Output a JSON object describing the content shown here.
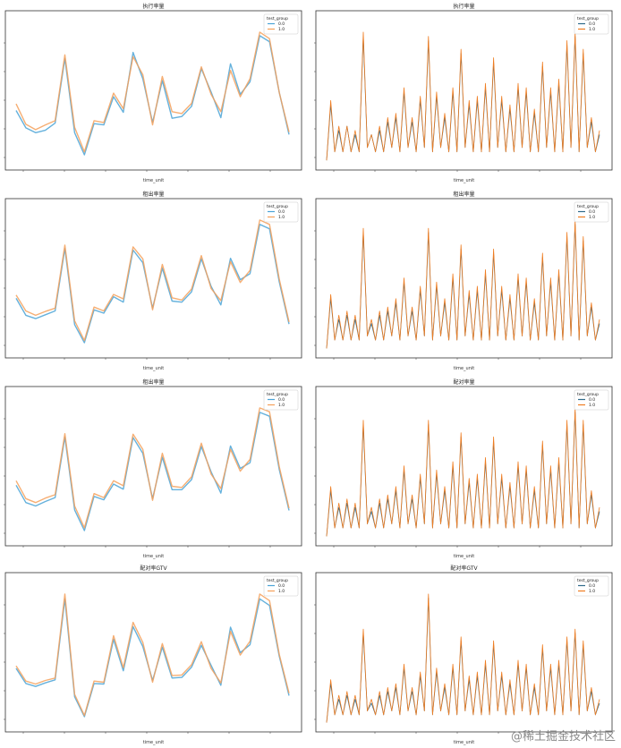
{
  "colors": {
    "series_0": "#4aa3d6",
    "series_1": "#f5a05a",
    "series_0_dark": "#2f6b8a",
    "series_1_dark": "#ef7d22",
    "axis": "#333333"
  },
  "footer": {
    "text": "@稀土掘金技术社区"
  },
  "chart_data": [
    {
      "type": "line",
      "title": "执行率量",
      "xlabel": "time_unit",
      "legend": {
        "title": "test_group",
        "placement": "top-right",
        "entries": [
          "0.0",
          "1.0"
        ]
      },
      "grid": false,
      "series": [
        {
          "name": "0.0",
          "values": [
            10.5,
            7.6,
            6.8,
            7.2,
            8.4,
            19.2,
            6.8,
            3.1,
            8.3,
            8.1,
            12.8,
            10.2,
            20.2,
            15.8,
            8.5,
            15.5,
            9.2,
            9.5,
            11.2,
            17.5,
            13.6,
            9.3,
            18.3,
            13.2,
            15.3,
            23.0,
            22.0,
            13.5,
            6.5
          ]
        },
        {
          "name": "1.0",
          "values": [
            11.6,
            8.2,
            7.3,
            8.1,
            8.8,
            19.8,
            7.7,
            3.6,
            8.8,
            8.5,
            13.4,
            10.8,
            19.5,
            16.5,
            8.1,
            16.2,
            10.3,
            10.0,
            11.7,
            17.8,
            13.2,
            10.3,
            17.2,
            12.8,
            15.8,
            23.6,
            22.5,
            13.5,
            6.9
          ]
        }
      ]
    },
    {
      "type": "line",
      "title": "执行率量",
      "xlabel": "time_unit",
      "legend": {
        "title": "test_group",
        "placement": "top-right",
        "entries": [
          "0.0",
          "1.0"
        ]
      },
      "grid": false,
      "series": [
        {
          "name": "0.0",
          "values": [
            1,
            14,
            3,
            8,
            3,
            9,
            3,
            7,
            3,
            30,
            4,
            7,
            3,
            8,
            3,
            10,
            4,
            11,
            3,
            17,
            4,
            10,
            3,
            15,
            4,
            29,
            3,
            16,
            4,
            11,
            3,
            17,
            3,
            26,
            4,
            14,
            3,
            15,
            3,
            18,
            3,
            24,
            4,
            15,
            3,
            13,
            3,
            18,
            4,
            17,
            3,
            12,
            3,
            23,
            4,
            17,
            3,
            19,
            3,
            28,
            4,
            30,
            3,
            26,
            4,
            10,
            3,
            7
          ]
        },
        {
          "name": "1.0",
          "values": [
            1,
            15,
            3,
            9,
            3,
            9,
            3,
            8,
            3,
            31,
            4,
            7,
            3,
            9,
            3,
            11,
            4,
            12,
            3,
            18,
            4,
            11,
            3,
            16,
            4,
            30,
            3,
            17,
            4,
            12,
            3,
            18,
            3,
            27,
            4,
            15,
            3,
            16,
            3,
            19,
            3,
            25,
            4,
            16,
            3,
            14,
            3,
            19,
            4,
            18,
            3,
            13,
            3,
            24,
            4,
            18,
            3,
            20,
            3,
            29,
            4,
            31,
            3,
            27,
            4,
            11,
            3,
            8
          ]
        }
      ]
    },
    {
      "type": "line",
      "title": "租出率量",
      "xlabel": "time_unit",
      "legend": {
        "title": "test_group",
        "placement": "top-right",
        "entries": [
          "0.0",
          "1.0"
        ]
      },
      "grid": false,
      "series": [
        {
          "name": "0.0",
          "values": [
            11.3,
            8.2,
            7.6,
            8.3,
            9.0,
            20.4,
            6.5,
            3.2,
            9.2,
            8.6,
            11.6,
            10.6,
            20.1,
            17.8,
            9.5,
            16.8,
            10.8,
            10.6,
            12.5,
            18.5,
            13.5,
            10.1,
            18.6,
            14.7,
            15.8,
            24.8,
            24.0,
            14.3,
            6.6
          ]
        },
        {
          "name": "1.0",
          "values": [
            11.9,
            9.0,
            8.2,
            8.9,
            9.5,
            21.0,
            7.2,
            3.6,
            9.7,
            9.0,
            12.0,
            11.2,
            20.7,
            18.5,
            9.2,
            17.5,
            11.4,
            11.0,
            13.0,
            19.1,
            13.1,
            10.9,
            18.0,
            14.2,
            16.4,
            25.6,
            24.8,
            14.8,
            7.0
          ]
        }
      ]
    },
    {
      "type": "line",
      "title": "租出率量",
      "xlabel": "time_unit",
      "legend": {
        "title": "test_group",
        "placement": "top-right",
        "entries": [
          "0.0",
          "1.0"
        ]
      },
      "grid": false,
      "series": [
        {
          "name": "0.0",
          "values": [
            1,
            13,
            3,
            8,
            3,
            9,
            3,
            8,
            3,
            29,
            4,
            7,
            3,
            9,
            3,
            10,
            4,
            12,
            3,
            17,
            4,
            10,
            3,
            15,
            4,
            29,
            3,
            16,
            4,
            12,
            3,
            18,
            3,
            25,
            4,
            14,
            3,
            15,
            3,
            19,
            3,
            24,
            4,
            15,
            3,
            13,
            3,
            18,
            4,
            17,
            3,
            12,
            3,
            23,
            4,
            17,
            3,
            19,
            3,
            28,
            4,
            31,
            3,
            27,
            4,
            11,
            3,
            7
          ]
        },
        {
          "name": "1.0",
          "values": [
            1,
            14,
            3,
            9,
            3,
            10,
            3,
            9,
            3,
            30,
            4,
            8,
            3,
            10,
            3,
            11,
            4,
            13,
            3,
            18,
            4,
            11,
            3,
            16,
            4,
            30,
            3,
            17,
            4,
            13,
            3,
            19,
            3,
            26,
            4,
            15,
            3,
            16,
            3,
            20,
            3,
            25,
            4,
            16,
            3,
            14,
            3,
            19,
            4,
            18,
            3,
            13,
            3,
            24,
            4,
            18,
            3,
            20,
            3,
            29,
            4,
            32,
            3,
            28,
            4,
            12,
            3,
            8
          ]
        }
      ]
    },
    {
      "type": "line",
      "title": "租出率量",
      "xlabel": "time_unit",
      "legend": {
        "title": "test_group",
        "placement": "top-right",
        "entries": [
          "0.0",
          "1.0"
        ]
      },
      "grid": false,
      "series": [
        {
          "name": "0.0",
          "values": [
            11.0,
            7.9,
            7.3,
            8.1,
            8.8,
            19.6,
            6.6,
            2.9,
            9.0,
            8.4,
            11.2,
            10.3,
            19.5,
            16.7,
            8.6,
            16.0,
            10.2,
            10.2,
            12.0,
            17.9,
            13.4,
            9.6,
            18.0,
            14.0,
            15.0,
            24.0,
            23.3,
            13.8,
            6.5
          ]
        },
        {
          "name": "1.0",
          "values": [
            11.8,
            8.6,
            7.9,
            8.7,
            9.3,
            20.2,
            7.3,
            3.4,
            9.5,
            8.8,
            11.8,
            10.9,
            20.1,
            17.4,
            8.3,
            16.7,
            10.8,
            10.6,
            12.5,
            18.5,
            13.0,
            10.4,
            17.4,
            13.5,
            15.6,
            24.8,
            24.1,
            14.3,
            6.9
          ]
        }
      ]
    },
    {
      "type": "line",
      "title": "配对率量",
      "xlabel": "time_unit",
      "legend": {
        "title": "test_group",
        "placement": "top-right",
        "entries": [
          "0.0",
          "1.0"
        ]
      },
      "grid": false,
      "series": [
        {
          "name": "0.0",
          "values": [
            1,
            12,
            3,
            8,
            3,
            9,
            3,
            8,
            3,
            28,
            4,
            7,
            3,
            9,
            3,
            10,
            4,
            12,
            3,
            17,
            4,
            10,
            3,
            15,
            4,
            28,
            3,
            16,
            4,
            12,
            3,
            18,
            3,
            25,
            4,
            14,
            3,
            15,
            3,
            19,
            3,
            24,
            4,
            15,
            3,
            13,
            3,
            18,
            4,
            17,
            3,
            12,
            3,
            23,
            4,
            17,
            3,
            19,
            3,
            28,
            4,
            31,
            3,
            28,
            4,
            11,
            3,
            7
          ]
        },
        {
          "name": "1.0",
          "values": [
            1,
            13,
            3,
            9,
            3,
            10,
            3,
            9,
            3,
            29,
            4,
            8,
            3,
            10,
            3,
            11,
            4,
            13,
            3,
            18,
            4,
            11,
            3,
            16,
            4,
            29,
            3,
            17,
            4,
            13,
            3,
            19,
            3,
            26,
            4,
            15,
            3,
            16,
            3,
            20,
            3,
            25,
            4,
            16,
            3,
            14,
            3,
            19,
            4,
            18,
            3,
            13,
            3,
            24,
            4,
            18,
            3,
            20,
            3,
            29,
            4,
            32,
            3,
            29,
            4,
            12,
            3,
            8
          ]
        }
      ]
    },
    {
      "type": "line",
      "title": "配对率GTV",
      "xlabel": "time_unit",
      "legend": {
        "title": "test_group",
        "placement": "top-right",
        "entries": [
          "0.0",
          "1.0"
        ]
      },
      "grid": false,
      "series": [
        {
          "name": "0.0",
          "values": [
            11.0,
            8.5,
            8.0,
            8.6,
            9.1,
            22.5,
            6.3,
            3.0,
            8.5,
            8.4,
            15.8,
            10.6,
            17.9,
            14.6,
            9.0,
            14.5,
            9.4,
            9.5,
            11.2,
            14.8,
            11.5,
            8.2,
            17.8,
            13.6,
            14.9,
            22.5,
            21.4,
            13.0,
            6.5
          ]
        },
        {
          "name": "1.0",
          "values": [
            11.4,
            8.9,
            8.4,
            9.0,
            9.4,
            23.3,
            6.7,
            3.2,
            8.9,
            8.7,
            16.4,
            11.1,
            18.6,
            15.3,
            8.7,
            15.1,
            9.8,
            9.9,
            11.6,
            15.4,
            11.0,
            8.6,
            17.1,
            13.2,
            15.5,
            23.3,
            22.2,
            13.3,
            6.9
          ]
        }
      ]
    },
    {
      "type": "line",
      "title": "配对率GTV",
      "xlabel": "time_unit",
      "legend": {
        "title": "test_group",
        "placement": "top-right",
        "entries": [
          "0.0",
          "1.0"
        ]
      },
      "grid": false,
      "series": [
        {
          "name": "0.0",
          "values": [
            1,
            11,
            3,
            7,
            3,
            8,
            3,
            7,
            3,
            24,
            4,
            6,
            3,
            8,
            3,
            9,
            4,
            10,
            3,
            15,
            4,
            9,
            3,
            13,
            4,
            33,
            3,
            14,
            4,
            10,
            3,
            15,
            3,
            22,
            4,
            12,
            3,
            13,
            3,
            16,
            3,
            21,
            4,
            13,
            3,
            11,
            3,
            16,
            4,
            15,
            3,
            10,
            3,
            20,
            4,
            15,
            3,
            16,
            3,
            22,
            4,
            24,
            3,
            21,
            4,
            9,
            3,
            6
          ]
        },
        {
          "name": "1.0",
          "values": [
            1,
            12,
            3,
            8,
            3,
            9,
            3,
            8,
            3,
            25,
            4,
            7,
            3,
            9,
            3,
            10,
            4,
            11,
            3,
            16,
            4,
            10,
            3,
            14,
            4,
            34,
            3,
            15,
            4,
            11,
            3,
            16,
            3,
            23,
            4,
            13,
            3,
            14,
            3,
            17,
            3,
            22,
            4,
            14,
            3,
            12,
            3,
            17,
            4,
            16,
            3,
            11,
            3,
            21,
            4,
            16,
            3,
            17,
            3,
            23,
            4,
            25,
            3,
            22,
            4,
            10,
            3,
            7
          ]
        }
      ]
    }
  ]
}
